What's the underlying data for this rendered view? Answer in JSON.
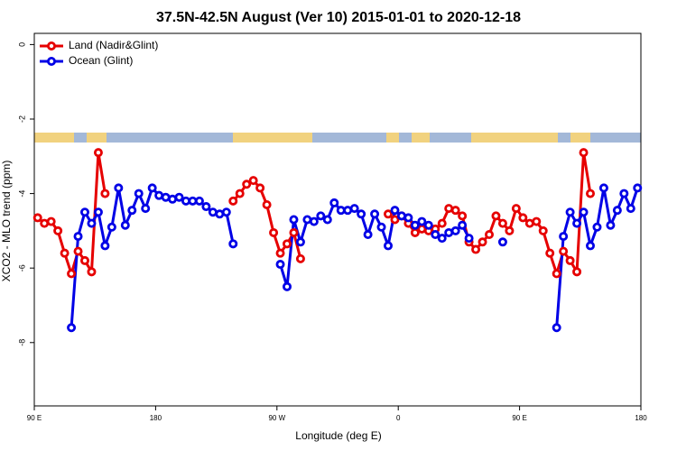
{
  "chart_data": {
    "type": "line",
    "title": "37.5N-42.5N August (Ver 10)   2015-01-01 to 2020-12-18",
    "x_label": "Longitude (deg E)",
    "y_label": "XCO2 - MLO trend (ppm)",
    "x": [
      92.5,
      97.5,
      102.5,
      107.5,
      112.5,
      117.5,
      122.5,
      127.5,
      132.5,
      137.5,
      142.5,
      147.5,
      152.5,
      157.5,
      162.5,
      167.5,
      172.5,
      177.5,
      182.5,
      187.5,
      192.5,
      197.5,
      202.5,
      207.5,
      212.5,
      217.5,
      222.5,
      227.5,
      232.5,
      237.5,
      242.5,
      247.5,
      252.5,
      257.5,
      262.5,
      267.5,
      272.5,
      277.5,
      282.5,
      287.5,
      292.5,
      297.5,
      302.5,
      307.5,
      312.5,
      317.5,
      322.5,
      327.5,
      332.5,
      337.5,
      342.5,
      347.5,
      352.5,
      357.5,
      362.5,
      367.5,
      372.5,
      377.5,
      382.5,
      387.5,
      392.5,
      397.5,
      402.5,
      407.5,
      412.5,
      417.5,
      422.5,
      427.5,
      432.5,
      437.5,
      442.5,
      447.5,
      452.5,
      457.5,
      462.5,
      467.5,
      472.5,
      477.5,
      482.5,
      487.5,
      492.5,
      497.5,
      502.5,
      507.5,
      512.5,
      517.5,
      522.5,
      527.5,
      532.5,
      537.5
    ],
    "series": [
      {
        "name": "Land (Nadir&Glint)",
        "color": "#e60000",
        "values": [
          -4.65,
          -4.8,
          -4.75,
          -5.0,
          -5.6,
          -6.15,
          -5.55,
          -5.8,
          -6.1,
          -2.9,
          -4.0,
          null,
          null,
          null,
          null,
          null,
          null,
          null,
          null,
          null,
          null,
          null,
          null,
          null,
          null,
          null,
          null,
          null,
          null,
          -4.2,
          -4.0,
          -3.75,
          -3.65,
          -3.85,
          -4.3,
          -5.05,
          -5.6,
          -5.35,
          -5.05,
          -5.75,
          null,
          null,
          null,
          null,
          null,
          null,
          null,
          null,
          null,
          null,
          null,
          null,
          -4.55,
          -4.7,
          -4.6,
          -4.8,
          -5.05,
          -4.95,
          -5.0,
          -4.95,
          -4.8,
          -4.4,
          -4.45,
          -4.6,
          -5.3,
          -5.5,
          -5.3,
          -5.1,
          -4.6,
          -4.8,
          -5.0,
          -4.4,
          -4.65,
          -4.8,
          -4.75,
          -5.0,
          -5.6,
          -6.15,
          -5.55,
          -5.8,
          -6.1,
          -2.9,
          -4.0,
          null,
          null,
          null,
          null,
          null,
          null,
          null
        ]
      },
      {
        "name": "Ocean (Glint)",
        "color": "#0000e6",
        "values": [
          null,
          null,
          null,
          null,
          null,
          -7.6,
          -5.15,
          -4.5,
          -4.8,
          -4.5,
          -5.4,
          -4.9,
          -3.85,
          -4.85,
          -4.45,
          -4.0,
          -4.4,
          -3.85,
          -4.05,
          -4.1,
          -4.15,
          -4.1,
          -4.2,
          -4.2,
          -4.2,
          -4.35,
          -4.5,
          -4.55,
          -4.5,
          -5.35,
          null,
          null,
          null,
          null,
          null,
          null,
          -5.9,
          -6.5,
          -4.7,
          -5.3,
          -4.7,
          -4.75,
          -4.6,
          -4.7,
          -4.25,
          -4.45,
          -4.45,
          -4.4,
          -4.55,
          -5.1,
          -4.55,
          -4.9,
          -5.4,
          -4.45,
          -4.6,
          -4.65,
          -4.85,
          -4.75,
          -4.85,
          -5.1,
          -5.2,
          -5.05,
          -5.0,
          -4.85,
          -5.2,
          null,
          null,
          null,
          null,
          -5.3,
          null,
          null,
          null,
          null,
          null,
          null,
          null,
          -7.6,
          -5.15,
          -4.5,
          -4.8,
          -4.5,
          -5.4,
          -4.9,
          -3.85,
          -4.85,
          -4.45,
          -4.0,
          -4.4,
          -3.85
        ]
      }
    ],
    "xlim": [
      90,
      540
    ],
    "xticks": [
      {
        "value": 90,
        "label": "90 E"
      },
      {
        "value": 180,
        "label": "180"
      },
      {
        "value": 270,
        "label": "90 W"
      },
      {
        "value": 360,
        "label": "0"
      },
      {
        "value": 450,
        "label": "90 E"
      },
      {
        "value": 540,
        "label": "180"
      }
    ],
    "ylim": [
      -9.7,
      0.3
    ],
    "yticks": [
      0,
      -2,
      -4,
      -6,
      -8
    ],
    "grid": false,
    "legend": "top-left"
  }
}
